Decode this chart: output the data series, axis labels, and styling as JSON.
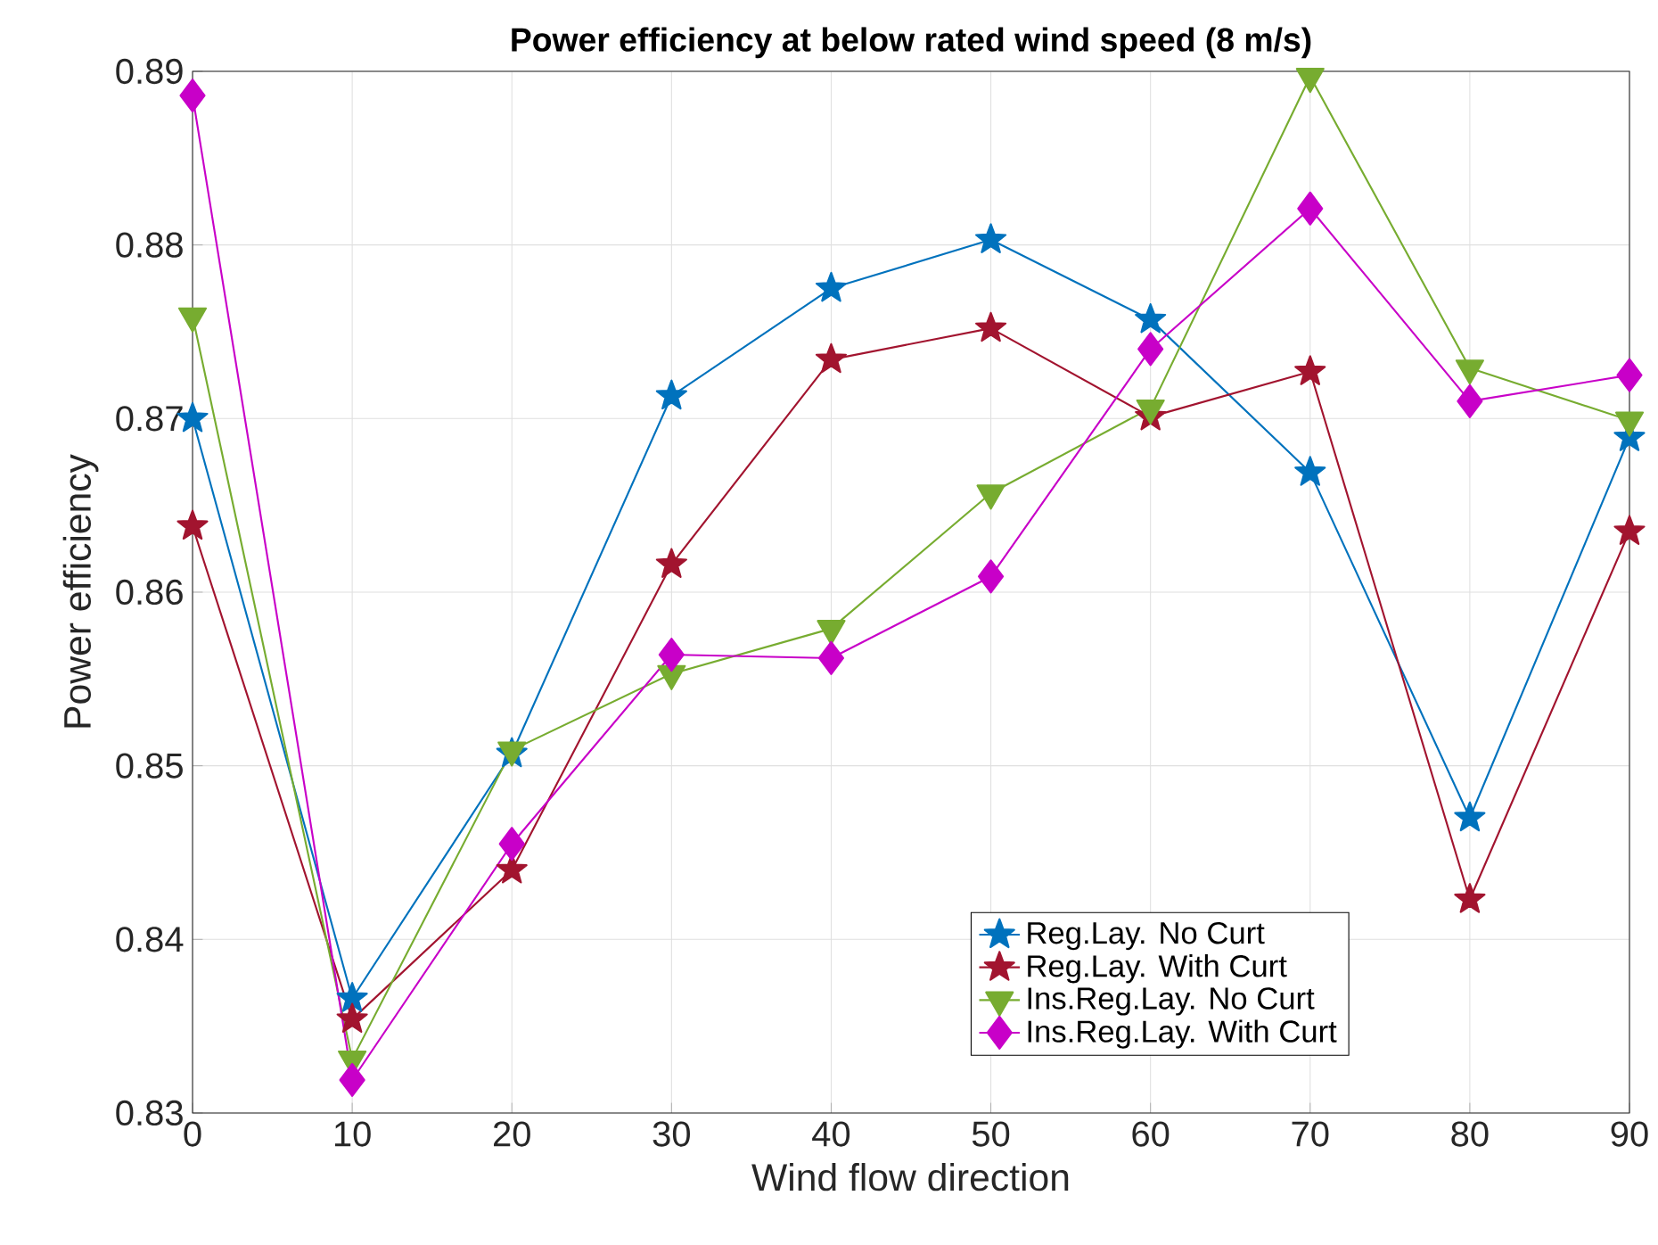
{
  "chart_data": {
    "type": "line",
    "title": "Power efficiency at below rated wind speed (8 m/s)",
    "xlabel": "Wind flow direction",
    "ylabel": "Power efficiency",
    "x": [
      0,
      10,
      20,
      30,
      40,
      50,
      60,
      70,
      80,
      90
    ],
    "series": [
      {
        "name": "Reg.Lay. No Curt",
        "color": "#0072bd",
        "marker": "star",
        "values": [
          0.87,
          0.8366,
          0.8507,
          0.8713,
          0.8775,
          0.8803,
          0.8757,
          0.8669,
          0.847,
          0.8689
        ]
      },
      {
        "name": "Reg.Lay. With Curt",
        "color": "#a2142f",
        "marker": "star",
        "values": [
          0.8638,
          0.8354,
          0.844,
          0.8616,
          0.8734,
          0.8752,
          0.8701,
          0.8727,
          0.8423,
          0.8635
        ]
      },
      {
        "name": "Ins.Reg.Lay. No Curt",
        "color": "#77ac30",
        "marker": "triangle",
        "values": [
          0.8759,
          0.8331,
          0.8509,
          0.8553,
          0.8579,
          0.8657,
          0.8706,
          0.8897,
          0.8729,
          0.8699
        ]
      },
      {
        "name": "Ins.Reg.Lay. With Curt",
        "color": "#c800c8",
        "marker": "diamond",
        "values": [
          0.8886,
          0.8319,
          0.8455,
          0.8564,
          0.8562,
          0.8609,
          0.874,
          0.8821,
          0.871,
          0.8725
        ]
      }
    ],
    "xlim": [
      0,
      90
    ],
    "xticks": [
      0,
      10,
      20,
      30,
      40,
      50,
      60,
      70,
      80,
      90
    ],
    "ylim": [
      0.83,
      0.89
    ],
    "yticks": [
      0.83,
      0.84,
      0.85,
      0.86,
      0.87,
      0.88,
      0.89
    ],
    "grid": true,
    "legend": "bottom right",
    "line_style": "solid"
  }
}
